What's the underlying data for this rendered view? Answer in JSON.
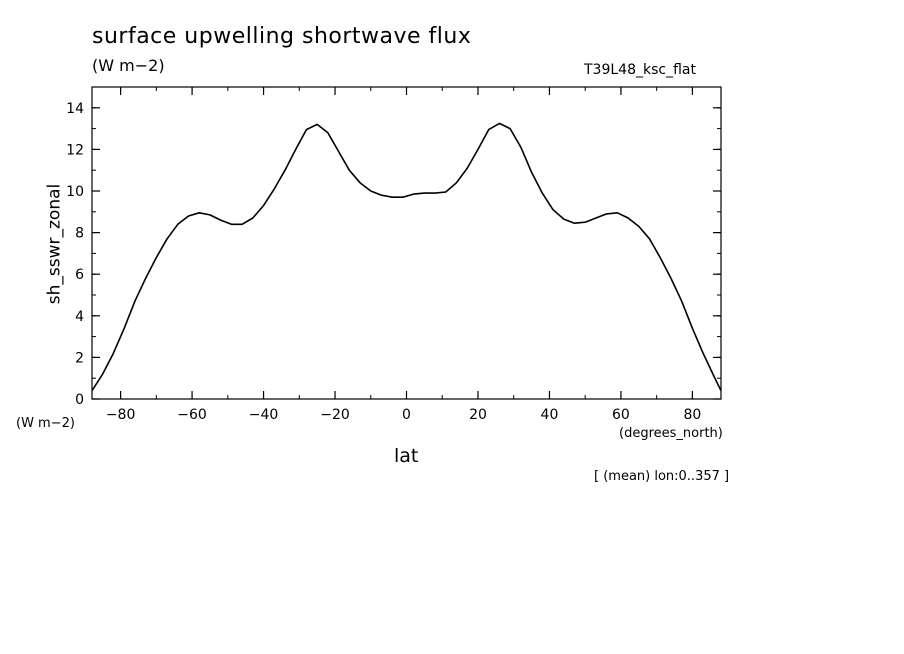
{
  "header": {
    "title": "surface upwelling shortwave flux",
    "units": "(W m−2)",
    "run_id": "T39L48_ksc_flat"
  },
  "footnote": "[ (mean) lon:0..357 ]",
  "chart_data": {
    "type": "line",
    "title": "surface upwelling shortwave flux",
    "xlabel": "lat",
    "xunits": "(degrees_north)",
    "ylabel": "sh_sswr_zonal",
    "yunits": "(W m−2)",
    "xlim": [
      -88,
      88
    ],
    "ylim": [
      0,
      15
    ],
    "xticks": [
      -80,
      -60,
      -40,
      -20,
      0,
      20,
      40,
      60,
      80
    ],
    "xtick_labels": [
      "−80",
      "−60",
      "−40",
      "−20",
      "0",
      "20",
      "40",
      "60",
      "80"
    ],
    "yticks": [
      0,
      2,
      4,
      6,
      8,
      10,
      12,
      14
    ],
    "ytick_labels": [
      "0",
      "2",
      "4",
      "6",
      "8",
      "10",
      "12",
      "14"
    ],
    "grid": false,
    "color": "#000000",
    "series": [
      {
        "x": [
          -88,
          -85,
          -82,
          -79,
          -76,
          -73,
          -70,
          -67,
          -64,
          -61,
          -58,
          -55,
          -52,
          -49,
          -46,
          -43,
          -40,
          -37,
          -34,
          -31,
          -28,
          -25,
          -22,
          -19,
          -16,
          -13,
          -10,
          -7,
          -4,
          -1,
          2,
          5,
          8,
          11,
          14,
          17,
          20,
          23,
          26,
          29,
          32,
          35,
          38,
          41,
          44,
          47,
          50,
          53,
          56,
          59,
          62,
          65,
          68,
          71,
          74,
          77,
          80,
          83,
          86,
          88
        ],
        "y": [
          0.4,
          1.2,
          2.2,
          3.4,
          4.7,
          5.8,
          6.8,
          7.7,
          8.4,
          8.8,
          8.95,
          8.85,
          8.6,
          8.4,
          8.4,
          8.7,
          9.3,
          10.1,
          11.0,
          12.0,
          12.95,
          13.2,
          12.8,
          11.9,
          11.0,
          10.4,
          10.0,
          9.8,
          9.7,
          9.7,
          9.85,
          9.9,
          9.9,
          9.95,
          10.4,
          11.1,
          12.0,
          12.95,
          13.25,
          13.0,
          12.1,
          10.9,
          9.9,
          9.1,
          8.65,
          8.45,
          8.5,
          8.7,
          8.9,
          8.95,
          8.7,
          8.3,
          7.7,
          6.8,
          5.8,
          4.7,
          3.4,
          2.2,
          1.1,
          0.4
        ]
      }
    ]
  }
}
